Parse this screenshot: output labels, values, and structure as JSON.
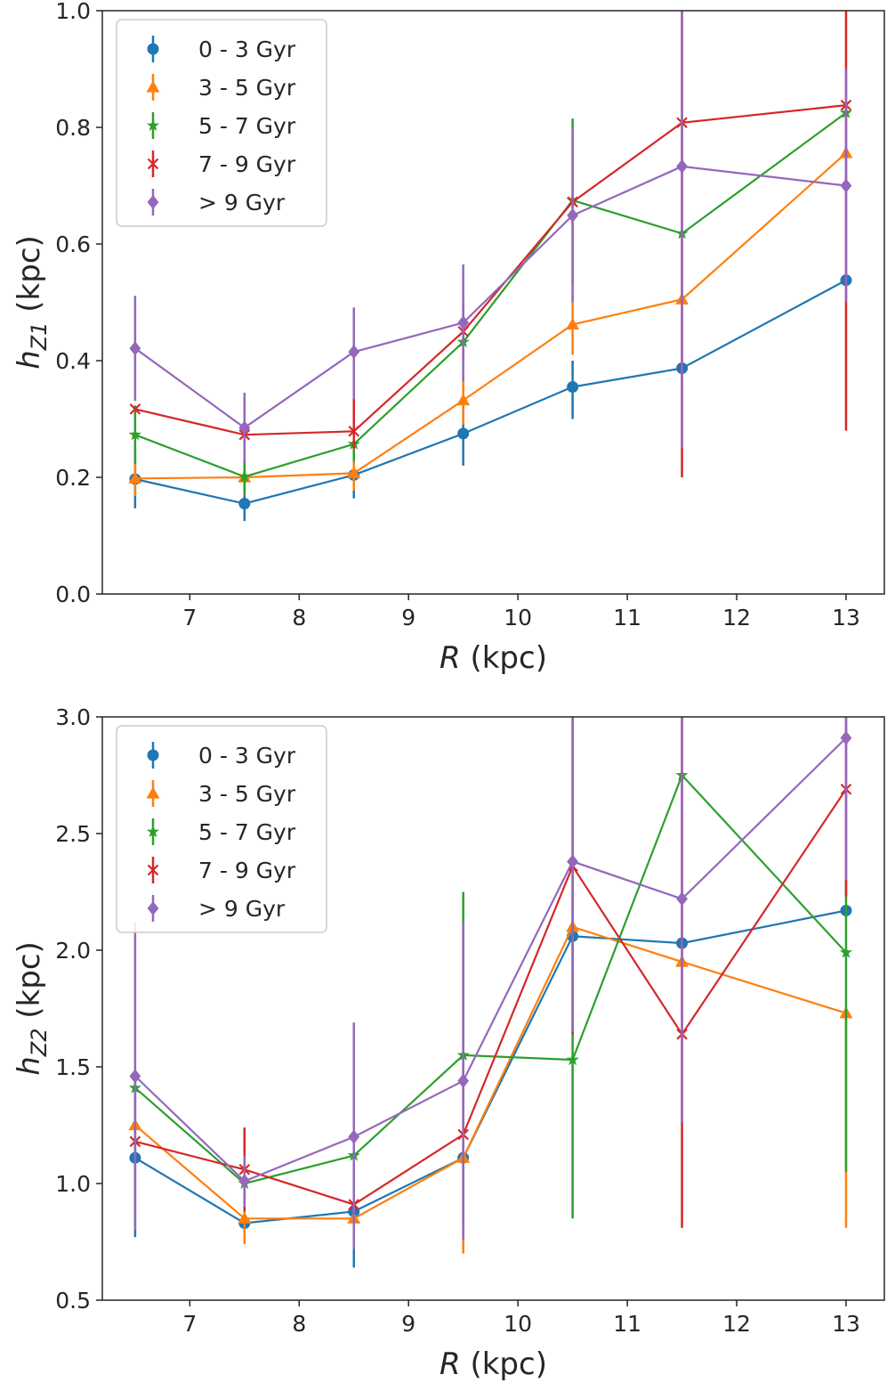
{
  "chart_data": [
    {
      "type": "line",
      "id": "top",
      "xlabel_italic": "R",
      "xlabel_rest": " (kpc)",
      "ylabel_main": "h",
      "ylabel_sub": "Z1",
      "ylabel_rest": " (kpc)",
      "xlim": [
        6.2,
        13.35
      ],
      "ylim": [
        0.0,
        1.0
      ],
      "xticks": [
        7,
        8,
        9,
        10,
        11,
        12,
        13
      ],
      "xtick_labels": [
        "7",
        "8",
        "9",
        "10",
        "11",
        "12",
        "13"
      ],
      "yticks": [
        0.0,
        0.2,
        0.4,
        0.6,
        0.8,
        1.0
      ],
      "ytick_labels": [
        "0.0",
        "0.2",
        "0.4",
        "0.6",
        "0.8",
        "1.0"
      ],
      "legend_position": "top-left",
      "x": [
        6.5,
        7.5,
        8.5,
        9.5,
        10.5,
        11.5,
        13.0
      ],
      "series": [
        {
          "name": "0 - 3 Gyr",
          "color": "#1f77b4",
          "marker": "circle",
          "values": [
            0.197,
            0.155,
            0.204,
            0.275,
            0.355,
            0.387,
            0.538
          ],
          "err_low": [
            0.147,
            0.125,
            0.164,
            0.22,
            0.3,
            0.387,
            0.538
          ],
          "err_high": [
            0.247,
            0.185,
            0.244,
            0.33,
            0.4,
            0.387,
            0.538
          ]
        },
        {
          "name": "3 - 5 Gyr",
          "color": "#ff7f0e",
          "marker": "triangle",
          "values": [
            0.198,
            0.2,
            0.207,
            0.332,
            0.462,
            0.505,
            0.756
          ],
          "err_low": [
            0.168,
            0.17,
            0.177,
            0.29,
            0.41,
            0.505,
            0.756
          ],
          "err_high": [
            0.228,
            0.23,
            0.237,
            0.374,
            0.514,
            0.505,
            0.756
          ]
        },
        {
          "name": "5 - 7 Gyr",
          "color": "#2ca02c",
          "marker": "star",
          "values": [
            0.273,
            0.201,
            0.257,
            0.432,
            0.675,
            0.618,
            0.825
          ],
          "err_low": [
            0.223,
            0.171,
            0.227,
            0.432,
            0.53,
            0.618,
            0.825
          ],
          "err_high": [
            0.323,
            0.231,
            0.287,
            0.432,
            0.815,
            0.618,
            0.825
          ]
        },
        {
          "name": "7 - 9 Gyr",
          "color": "#d62728",
          "marker": "x",
          "values": [
            0.317,
            0.273,
            0.279,
            0.45,
            0.672,
            0.808,
            0.838
          ],
          "err_low": [
            0.317,
            0.253,
            0.249,
            0.4,
            0.672,
            0.2,
            0.28
          ],
          "err_high": [
            0.317,
            0.293,
            0.335,
            0.5,
            0.672,
            1.0,
            1.0
          ]
        },
        {
          "name": "> 9 Gyr",
          "color": "#9467bd",
          "marker": "diamond",
          "values": [
            0.421,
            0.285,
            0.415,
            0.465,
            0.649,
            0.733,
            0.7
          ],
          "err_low": [
            0.331,
            0.225,
            0.335,
            0.365,
            0.5,
            0.25,
            0.5
          ],
          "err_high": [
            0.511,
            0.345,
            0.491,
            0.565,
            0.8,
            1.0,
            0.9
          ]
        }
      ]
    },
    {
      "type": "line",
      "id": "bottom",
      "xlabel_italic": "R",
      "xlabel_rest": " (kpc)",
      "ylabel_main": "h",
      "ylabel_sub": "Z2",
      "ylabel_rest": " (kpc)",
      "xlim": [
        6.2,
        13.35
      ],
      "ylim": [
        0.5,
        3.0
      ],
      "xticks": [
        7,
        8,
        9,
        10,
        11,
        12,
        13
      ],
      "xtick_labels": [
        "7",
        "8",
        "9",
        "10",
        "11",
        "12",
        "13"
      ],
      "yticks": [
        0.5,
        1.0,
        1.5,
        2.0,
        2.5,
        3.0
      ],
      "ytick_labels": [
        "0.5",
        "1.0",
        "1.5",
        "2.0",
        "2.5",
        "3.0"
      ],
      "legend_position": "top-left",
      "x": [
        6.5,
        7.5,
        8.5,
        9.5,
        10.5,
        11.5,
        13.0
      ],
      "series": [
        {
          "name": "0 - 3 Gyr",
          "color": "#1f77b4",
          "marker": "circle",
          "values": [
            1.11,
            0.83,
            0.88,
            1.11,
            2.06,
            2.03,
            2.17
          ],
          "err_low": [
            0.77,
            0.8,
            0.64,
            1.11,
            2.06,
            2.03,
            2.17
          ],
          "err_high": [
            1.45,
            0.86,
            1.12,
            1.11,
            2.06,
            2.03,
            2.17
          ]
        },
        {
          "name": "3 - 5 Gyr",
          "color": "#ff7f0e",
          "marker": "triangle",
          "values": [
            1.25,
            0.85,
            0.85,
            1.11,
            2.1,
            1.95,
            1.73
          ],
          "err_low": [
            1.25,
            0.74,
            0.85,
            0.7,
            2.1,
            1.95,
            0.81
          ],
          "err_high": [
            1.25,
            0.96,
            0.85,
            1.52,
            2.1,
            1.95,
            1.73
          ]
        },
        {
          "name": "5 - 7 Gyr",
          "color": "#2ca02c",
          "marker": "star",
          "values": [
            1.41,
            1.0,
            1.12,
            1.55,
            1.53,
            2.75,
            1.99
          ],
          "err_low": [
            1.41,
            1.0,
            1.12,
            0.85,
            0.85,
            2.75,
            1.05
          ],
          "err_high": [
            1.41,
            1.0,
            1.12,
            2.25,
            2.25,
            2.75,
            2.3
          ]
        },
        {
          "name": "7 - 9 Gyr",
          "color": "#d62728",
          "marker": "x",
          "values": [
            1.18,
            1.06,
            0.91,
            1.21,
            2.36,
            1.64,
            2.69
          ],
          "err_low": [
            1.18,
            0.88,
            0.91,
            1.21,
            1.64,
            0.81,
            2.23
          ],
          "err_high": [
            1.18,
            1.24,
            0.91,
            1.21,
            3.0,
            3.0,
            3.0
          ]
        },
        {
          "name": "> 9 Gyr",
          "color": "#9467bd",
          "marker": "diamond",
          "values": [
            1.46,
            1.01,
            1.2,
            1.44,
            2.38,
            2.22,
            2.91
          ],
          "err_low": [
            0.8,
            0.9,
            0.72,
            0.76,
            1.65,
            1.26,
            2.3
          ],
          "err_high": [
            2.12,
            1.12,
            1.69,
            2.12,
            3.0,
            3.0,
            3.0
          ]
        }
      ]
    }
  ]
}
